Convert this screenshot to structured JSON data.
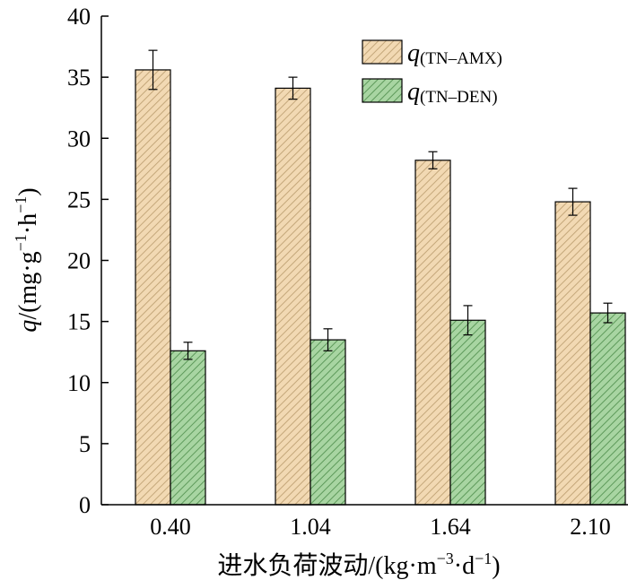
{
  "chart_data": {
    "type": "bar",
    "categories": [
      "0.40",
      "1.04",
      "1.64",
      "2.10"
    ],
    "series": [
      {
        "name": "q(TN–AMX)",
        "name_main": "q",
        "name_sub": "(TN–AMX)",
        "values": [
          35.6,
          34.1,
          28.2,
          24.8
        ],
        "errors": [
          1.6,
          0.9,
          0.7,
          1.1
        ],
        "color": "#f2d9b3",
        "hatch_color": "#c4a77a"
      },
      {
        "name": "q(TN–DEN)",
        "name_main": "q",
        "name_sub": "(TN–DEN)",
        "values": [
          12.6,
          13.5,
          15.1,
          15.7
        ],
        "errors": [
          0.7,
          0.9,
          1.2,
          0.8
        ],
        "color": "#a8d5a2",
        "hatch_color": "#5e9a5b"
      }
    ],
    "yticks": [
      "0",
      "5",
      "10",
      "15",
      "20",
      "25",
      "30",
      "35",
      "40"
    ],
    "ylim": [
      0,
      40
    ],
    "ylabel": "q/(mg·g⁻¹·h⁻¹)",
    "xlabel": "进水负荷波动/(kg·m⁻³·d⁻¹)",
    "legend_position": "top-right",
    "grid": false
  }
}
